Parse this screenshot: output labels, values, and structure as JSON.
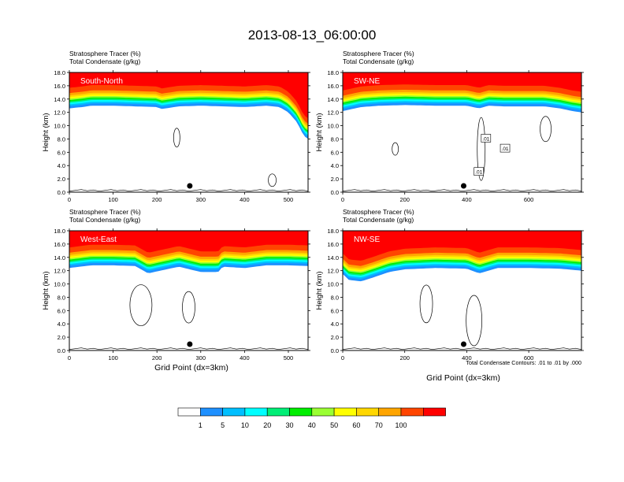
{
  "title": "2013-08-13_06:00:00",
  "panel_title_line1": "Stratosphere Tracer   (%)",
  "panel_title_line2": "Total Condensate   (g/kg)",
  "ylabel": "Height (km)",
  "xlabel": "Grid Point (dx=3km)",
  "contour_note": "Total Condensate Contours: .01 to .01 by .000",
  "colorbar": {
    "colors": [
      "#ffffff",
      "#1e90ff",
      "#00bfff",
      "#00ffff",
      "#00ee76",
      "#00ee00",
      "#9aff32",
      "#ffff00",
      "#ffd700",
      "#ffa500",
      "#ff4500",
      "#ff0000"
    ],
    "labels": [
      "1",
      "5",
      "10",
      "20",
      "30",
      "40",
      "50",
      "60",
      "70",
      "100"
    ]
  },
  "chart_data": [
    {
      "type": "contour",
      "label": "South-North",
      "xlim": [
        0,
        545
      ],
      "ylim": [
        0,
        18
      ],
      "xticks": [
        0,
        100,
        200,
        300,
        400,
        500
      ],
      "yticks": [
        "0.0",
        "2.0",
        "4.0",
        "6.0",
        "8.0",
        "10.0",
        "12.0",
        "14.0",
        "16.0",
        "18.0"
      ],
      "profile_x": [
        0,
        30,
        50,
        100,
        150,
        200,
        210,
        250,
        300,
        350,
        400,
        450,
        480,
        500,
        520,
        535,
        545
      ],
      "tracer_base_km": [
        12.6,
        12.8,
        13.0,
        13.0,
        12.9,
        12.8,
        12.5,
        12.9,
        13.0,
        12.9,
        12.8,
        13.0,
        12.8,
        12.0,
        10.5,
        8.5,
        8.0
      ],
      "marker_x": 275,
      "contour_labels": []
    },
    {
      "type": "contour",
      "label": "SW-NE",
      "xlim": [
        0,
        770
      ],
      "ylim": [
        0,
        18
      ],
      "xticks": [
        0,
        200,
        400,
        600
      ],
      "yticks": [
        "0.0",
        "2.0",
        "4.0",
        "6.0",
        "8.0",
        "10.0",
        "12.0",
        "14.0",
        "16.0",
        "18.0"
      ],
      "profile_x": [
        0,
        60,
        120,
        200,
        300,
        400,
        440,
        470,
        520,
        600,
        650,
        700,
        740,
        770
      ],
      "tracer_base_km": [
        12.2,
        12.8,
        13.0,
        13.1,
        13.0,
        13.0,
        12.6,
        13.0,
        12.9,
        12.9,
        12.9,
        12.6,
        12.2,
        12.0
      ],
      "marker_x": 390,
      "contour_labels": [
        ".01",
        ".01",
        ".01"
      ]
    },
    {
      "type": "contour",
      "label": "West-East",
      "xlim": [
        0,
        545
      ],
      "ylim": [
        0,
        18
      ],
      "xticks": [
        0,
        100,
        200,
        300,
        400,
        500
      ],
      "yticks": [
        "0.0",
        "2.0",
        "4.0",
        "6.0",
        "8.0",
        "10.0",
        "12.0",
        "14.0",
        "16.0",
        "18.0"
      ],
      "profile_x": [
        0,
        50,
        100,
        150,
        180,
        250,
        300,
        340,
        350,
        400,
        450,
        500,
        545
      ],
      "tracer_base_km": [
        12.4,
        12.8,
        12.8,
        12.7,
        11.6,
        12.6,
        11.8,
        11.8,
        12.6,
        12.4,
        12.8,
        12.8,
        12.7
      ],
      "marker_x": 275,
      "contour_labels": []
    },
    {
      "type": "contour",
      "label": "NW-SE",
      "xlim": [
        0,
        770
      ],
      "ylim": [
        0,
        18
      ],
      "xticks": [
        0,
        200,
        400,
        600
      ],
      "yticks": [
        "0.0",
        "2.0",
        "4.0",
        "6.0",
        "8.0",
        "10.0",
        "12.0",
        "14.0",
        "16.0",
        "18.0"
      ],
      "profile_x": [
        0,
        20,
        60,
        100,
        150,
        200,
        300,
        400,
        440,
        500,
        600,
        700,
        770
      ],
      "tracer_base_km": [
        11.5,
        10.6,
        10.4,
        11.0,
        11.8,
        12.2,
        12.4,
        12.3,
        11.6,
        12.4,
        12.4,
        12.3,
        12.0
      ],
      "marker_x": 390,
      "contour_labels": []
    }
  ]
}
